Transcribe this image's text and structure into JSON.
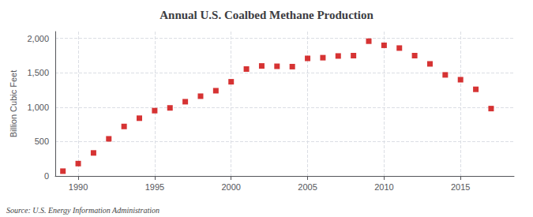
{
  "chart_data": {
    "type": "scatter",
    "title": "Annual U.S. Coalbed Methane Production",
    "ylabel": "Billion Cubic Feet",
    "source": "Source: U.S. Energy Information Administration",
    "x": [
      1989,
      1990,
      1991,
      1992,
      1993,
      1994,
      1995,
      1996,
      1997,
      1998,
      1999,
      2000,
      2001,
      2002,
      2003,
      2004,
      2005,
      2006,
      2007,
      2008,
      2009,
      2010,
      2011,
      2012,
      2013,
      2014,
      2015,
      2016,
      2017
    ],
    "values": [
      70,
      180,
      335,
      540,
      720,
      840,
      950,
      990,
      1080,
      1160,
      1240,
      1370,
      1555,
      1600,
      1595,
      1590,
      1710,
      1720,
      1745,
      1750,
      1960,
      1900,
      1860,
      1750,
      1630,
      1470,
      1400,
      1260,
      980
    ],
    "color": "#CC0000",
    "marker": "square",
    "xlim": [
      1988.5,
      2018.5
    ],
    "xticks": [
      1990,
      1995,
      2000,
      2005,
      2010,
      2015
    ],
    "ylim": [
      0,
      2100
    ],
    "yticks": [
      0,
      500,
      {
        "value": 1000,
        "label": "1,000"
      },
      {
        "value": 1500,
        "label": "1,500"
      },
      {
        "value": 2000,
        "label": "2,000"
      }
    ],
    "grid": true
  }
}
